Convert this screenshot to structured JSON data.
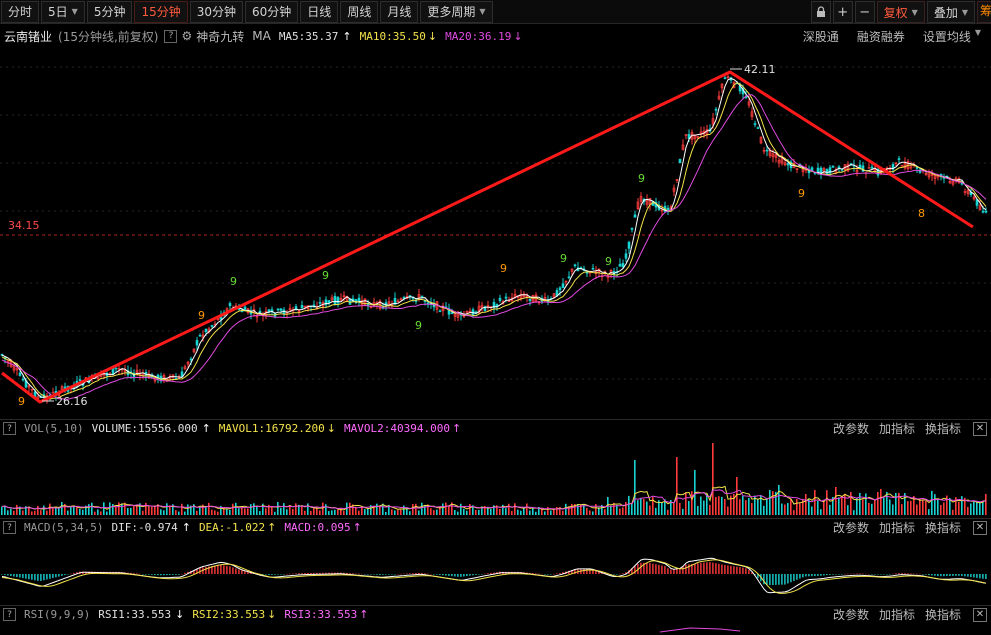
{
  "toolbar": {
    "periods": [
      {
        "label": "分时",
        "active": false,
        "dropdown": false
      },
      {
        "label": "5日",
        "active": false,
        "dropdown": true
      },
      {
        "label": "5分钟",
        "active": false,
        "dropdown": false
      },
      {
        "label": "15分钟",
        "active": true,
        "dropdown": false
      },
      {
        "label": "30分钟",
        "active": false,
        "dropdown": false
      },
      {
        "label": "60分钟",
        "active": false,
        "dropdown": false
      },
      {
        "label": "日线",
        "active": false,
        "dropdown": false
      },
      {
        "label": "周线",
        "active": false,
        "dropdown": false
      },
      {
        "label": "月线",
        "active": false,
        "dropdown": false
      },
      {
        "label": "更多周期",
        "active": false,
        "dropdown": true
      }
    ],
    "right": {
      "lock_icon": "lock-icon",
      "zoom_in": "+",
      "zoom_out": "−",
      "adjust_label": "复权",
      "overlay_label": "叠加",
      "cut_label": "筹"
    }
  },
  "info": {
    "stock_name": "云南锗业",
    "chart_desc": "(15分钟线,前复权)",
    "help": "?",
    "indicator_name": "神奇九转",
    "ma_prefix": "MA",
    "ma5": "MA5:35.37",
    "ma10": "MA10:35.50",
    "ma20": "MA20:36.19",
    "ma5_dir": "↑",
    "ma10_dir": "↓",
    "ma20_dir": "↓",
    "links": [
      "深股通",
      "融资融券",
      "设置均线"
    ]
  },
  "price": {
    "high_label": "42.11",
    "low_label": "26.16",
    "ref_label": "34.15",
    "high": 42.11,
    "low": 26.16,
    "ref": 34.15
  },
  "vol_panel": {
    "name": "VOL(5,10)",
    "volume": "VOLUME:15556.000",
    "volume_dir": "↑",
    "mavol1": "MAVOL1:16792.200",
    "mavol1_dir": "↓",
    "mavol2": "MAVOL2:40394.000",
    "mavol2_dir": "↑",
    "actions": [
      "改参数",
      "加指标",
      "换指标"
    ]
  },
  "macd_panel": {
    "name": "MACD(5,34,5)",
    "dif": "DIF:-0.974",
    "dif_dir": "↑",
    "dea": "DEA:-1.022",
    "dea_dir": "↑",
    "macd": "MACD:0.095",
    "macd_dir": "↑",
    "actions": [
      "改参数",
      "加指标",
      "换指标"
    ]
  },
  "rsi_panel": {
    "name": "RSI(9,9,9)",
    "rsi1": "RSI1:33.553",
    "rsi1_dir": "↓",
    "rsi2": "RSI2:33.553",
    "rsi2_dir": "↓",
    "rsi3": "RSI3:33.553",
    "rsi3_dir": "↑",
    "actions": [
      "改参数",
      "加指标",
      "换指标"
    ]
  },
  "close_icon": "✕",
  "colors": {
    "up": "#ff3b3b",
    "down": "#19d2d2",
    "ma5": "#ffffff",
    "ma10": "#f2e24a",
    "ma20": "#e04ae0",
    "trend": "#ff1a1a",
    "td_orange": "#ff9900",
    "td_green": "#66dd33"
  },
  "chart_data": {
    "type": "candlestick",
    "period": "15分钟",
    "trend_lines": [
      {
        "from": 26.16,
        "to": 42.11
      },
      {
        "from": 42.11,
        "to": 33.6
      }
    ],
    "ma": {
      "ma5": 35.37,
      "ma10": 35.5,
      "ma20": 36.19
    },
    "volume": {
      "volume": 15556.0,
      "mavol1": 16792.2,
      "mavol2": 40394.0
    },
    "macd": {
      "dif": -0.974,
      "dea": -1.022,
      "macd": 0.095
    },
    "rsi": {
      "rsi1": 33.553,
      "rsi2": 33.553,
      "rsi3": 33.553
    },
    "td_sequential_marks": [
      {
        "count": "9",
        "color": "orange"
      },
      {
        "count": "9",
        "color": "green"
      },
      {
        "count": "9",
        "color": "orange"
      },
      {
        "count": "9",
        "color": "green"
      },
      {
        "count": "9",
        "color": "green"
      },
      {
        "count": "9",
        "color": "orange"
      },
      {
        "count": "9",
        "color": "green"
      },
      {
        "count": "9",
        "color": "green"
      },
      {
        "count": "9",
        "color": "green"
      },
      {
        "count": "9",
        "color": "orange"
      },
      {
        "count": "8",
        "color": "orange"
      }
    ]
  }
}
